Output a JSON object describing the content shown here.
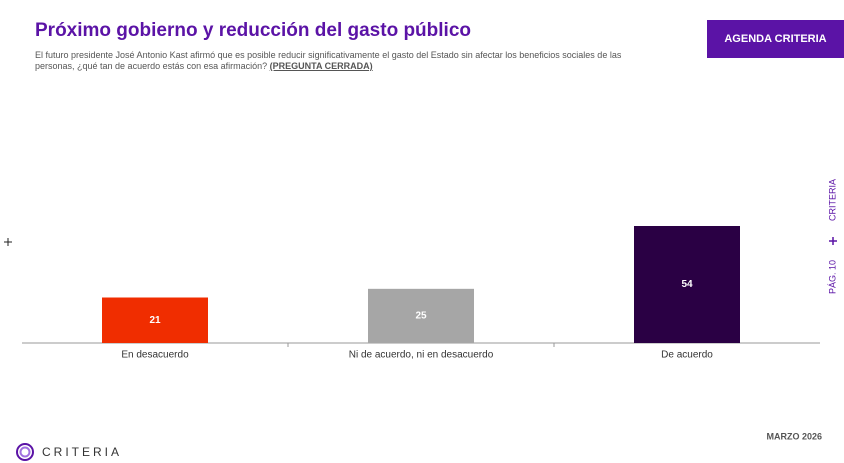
{
  "header": {
    "title": "Próximo gobierno y reducción del gasto público",
    "subtitle": "El futuro presidente José Antonio Kast afirmó que es posible reducir significativamente el gasto del Estado sin afectar los beneficios sociales de las personas, ¿qué tan de acuerdo estás con esa afirmación?",
    "subtitle_note": "(PREGUNTA CERRADA)",
    "button": "AGENDA CRITERIA"
  },
  "chart_data": {
    "type": "bar",
    "categories": [
      "En desacuerdo",
      "Ni de acuerdo, ni en desacuerdo",
      "De acuerdo"
    ],
    "values": [
      21,
      25,
      54
    ],
    "colors": [
      "#f02d00",
      "#a6a6a6",
      "#2a0044"
    ]
  },
  "side": {
    "brand": "CRITERIA",
    "page": "PÁG. 10"
  },
  "footer": {
    "date": "MARZO 2026",
    "logo": "CRITERIA"
  }
}
